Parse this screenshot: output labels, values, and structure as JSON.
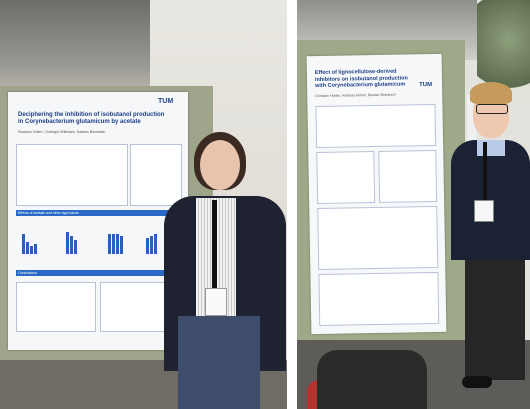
{
  "left_photo": {
    "poster_title": "Deciphering the inhibition of isobutanol production in Corynebacterium glutamicum by acetate",
    "institution_logo": "TUM",
    "section_header": "Effects of acetate and other byproducts",
    "section_header_2": "Conclusions",
    "author_line": "Susanne Vollert, Christoph Wittmann, Bastian Blombach"
  },
  "right_photo": {
    "poster_title": "Effect of lignocellulose-derived inhibitors on isobutanol production with Corynebacterium glutamicum",
    "institution_logo": "TUM",
    "author_line": "Christian Holder, Andreas Köhler, Bastian Blombach"
  },
  "colors": {
    "poster_accent": "#2a6ac7",
    "pinboard": "#9ea58a"
  }
}
